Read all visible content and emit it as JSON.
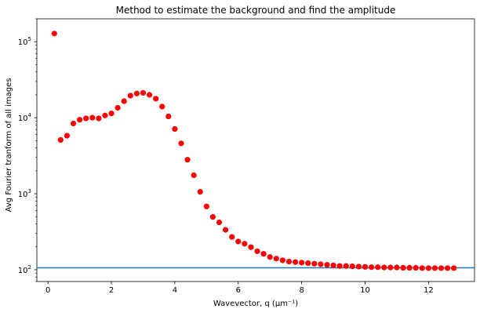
{
  "chart_data": {
    "type": "scatter",
    "title": "Method to estimate the background and find the amplitude",
    "xlabel": "Wavevector, q (μm⁻¹)",
    "ylabel": "Avg Fourier tranform of all images",
    "yscale": "log",
    "xlim": [
      -0.35,
      13.45
    ],
    "ylim": [
      70,
      200000
    ],
    "xticks": [
      0,
      2,
      4,
      6,
      8,
      10,
      12
    ],
    "yticks": [
      {
        "value": 100,
        "label": "10",
        "exp": "2"
      },
      {
        "value": 1000,
        "label": "10",
        "exp": "3"
      },
      {
        "value": 10000,
        "label": "10",
        "exp": "4"
      },
      {
        "value": 100000,
        "label": "10",
        "exp": "5"
      }
    ],
    "grid": false,
    "marker_color": "#ff0000",
    "line_color": "#1f77b4",
    "baseline": 106,
    "x": [
      0.2,
      0.4,
      0.6,
      0.8,
      1.0,
      1.2,
      1.4,
      1.6,
      1.8,
      2.0,
      2.2,
      2.4,
      2.6,
      2.8,
      3.0,
      3.2,
      3.4,
      3.6,
      3.8,
      4.0,
      4.2,
      4.4,
      4.6,
      4.8,
      5.0,
      5.2,
      5.4,
      5.6,
      5.8,
      6.0,
      6.2,
      6.4,
      6.6,
      6.8,
      7.0,
      7.2,
      7.4,
      7.6,
      7.8,
      8.0,
      8.2,
      8.4,
      8.6,
      8.8,
      9.0,
      9.2,
      9.4,
      9.6,
      9.8,
      10.0,
      10.2,
      10.4,
      10.6,
      10.8,
      11.0,
      11.2,
      11.4,
      11.6,
      11.8,
      12.0,
      12.2,
      12.4,
      12.6,
      12.8
    ],
    "y": [
      128000,
      5100,
      5800,
      8400,
      9400,
      9800,
      10000,
      9800,
      10700,
      11400,
      13500,
      16500,
      19500,
      20800,
      21200,
      20000,
      17800,
      14000,
      10400,
      7100,
      4600,
      2800,
      1750,
      1060,
      680,
      495,
      420,
      335,
      270,
      235,
      220,
      198,
      175,
      162,
      147,
      140,
      133,
      128,
      126,
      124,
      122,
      120,
      118,
      116,
      114,
      112,
      112,
      111,
      110,
      109,
      108,
      108,
      107,
      107,
      107,
      106,
      106,
      106,
      105,
      105,
      105,
      105,
      105,
      105
    ]
  }
}
